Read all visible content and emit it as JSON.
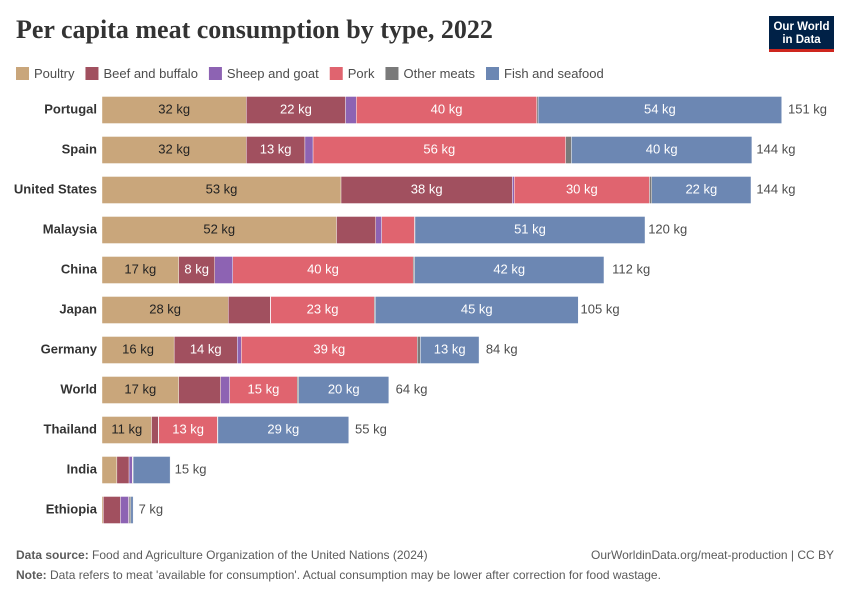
{
  "chart_data": {
    "type": "stacked-bar-horizontal",
    "title": "Per capita meat consumption by type, 2022",
    "categories": [
      "Portugal",
      "Spain",
      "United States",
      "Malaysia",
      "China",
      "Japan",
      "Germany",
      "World",
      "Thailand",
      "India",
      "Ethiopia"
    ],
    "series": [
      {
        "name": "Poultry",
        "color": "#c9a67b",
        "values": [
          32,
          32,
          53,
          52,
          17,
          28,
          16,
          17,
          11,
          3.3,
          0.3
        ],
        "value_labels": [
          "32 kg",
          "32 kg",
          "53 kg",
          "52 kg",
          "17 kg",
          "28 kg",
          "16 kg",
          "17 kg",
          "11 kg",
          null,
          null
        ]
      },
      {
        "name": "Beef and buffalo",
        "color": "#a1505f",
        "values": [
          22,
          13,
          38,
          8.7,
          8,
          9.3,
          14,
          9.3,
          1.5,
          2.7,
          3.8
        ],
        "value_labels": [
          "22 kg",
          "13 kg",
          "38 kg",
          null,
          "8 kg",
          null,
          "14 kg",
          null,
          null,
          null,
          null
        ]
      },
      {
        "name": "Sheep and goat",
        "color": "#8d63b3",
        "values": [
          2.4,
          1.8,
          0.4,
          1.3,
          4,
          0.1,
          0.9,
          2,
          0.1,
          0.7,
          1.8
        ],
        "value_labels": [
          null,
          null,
          null,
          null,
          null,
          null,
          null,
          null,
          null,
          null,
          null
        ]
      },
      {
        "name": "Pork",
        "color": "#e0646f",
        "values": [
          40,
          56,
          30,
          7.3,
          40,
          23,
          39,
          15,
          13,
          0.1,
          0.1
        ],
        "value_labels": [
          "40 kg",
          "56 kg",
          "30 kg",
          null,
          "40 kg",
          "23 kg",
          "39 kg",
          "15 kg",
          "13 kg",
          null,
          null
        ]
      },
      {
        "name": "Other meats",
        "color": "#7a7a7a",
        "values": [
          0.3,
          1.3,
          0.5,
          0.1,
          0.3,
          0.2,
          0.7,
          0.3,
          0.1,
          0.1,
          0.4
        ],
        "value_labels": [
          null,
          null,
          null,
          null,
          null,
          null,
          null,
          null,
          null,
          null,
          null
        ]
      },
      {
        "name": "Fish and seafood",
        "color": "#6c87b3",
        "values": [
          54,
          40,
          22,
          51,
          42,
          45,
          13,
          20,
          29,
          8.2,
          0.5
        ],
        "value_labels": [
          "54 kg",
          "40 kg",
          "22 kg",
          "51 kg",
          "42 kg",
          "45 kg",
          "13 kg",
          "20 kg",
          "29 kg",
          null,
          null
        ]
      }
    ],
    "totals": [
      151,
      144,
      144,
      120,
      112,
      105,
      84,
      64,
      55,
      15,
      7
    ],
    "total_labels": [
      "151 kg",
      "144 kg",
      "144 kg",
      "120 kg",
      "112 kg",
      "105 kg",
      "84 kg",
      "64 kg",
      "55 kg",
      "15 kg",
      "7 kg"
    ]
  },
  "logo": {
    "lines": [
      "Our World",
      "in Data"
    ]
  },
  "footer": {
    "source_label": "Data source:",
    "source": "Food and Agriculture Organization of the United Nations (2024)",
    "url": "OurWorldinData.org/meat-production | CC BY",
    "note_label": "Note:",
    "note": "Data refers to meat 'available for consumption'. Actual consumption may be lower after correction for food wastage."
  }
}
